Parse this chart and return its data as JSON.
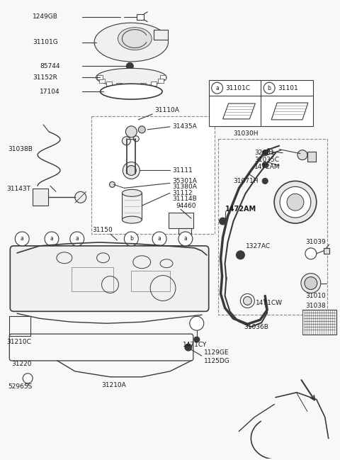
{
  "bg_color": "#f8f8f8",
  "line_color": "#3a3a3a",
  "text_color": "#1a1a1a",
  "figsize": [
    4.8,
    6.49
  ],
  "dpi": 100,
  "xlim": [
    0,
    480
  ],
  "ylim": [
    0,
    649
  ]
}
